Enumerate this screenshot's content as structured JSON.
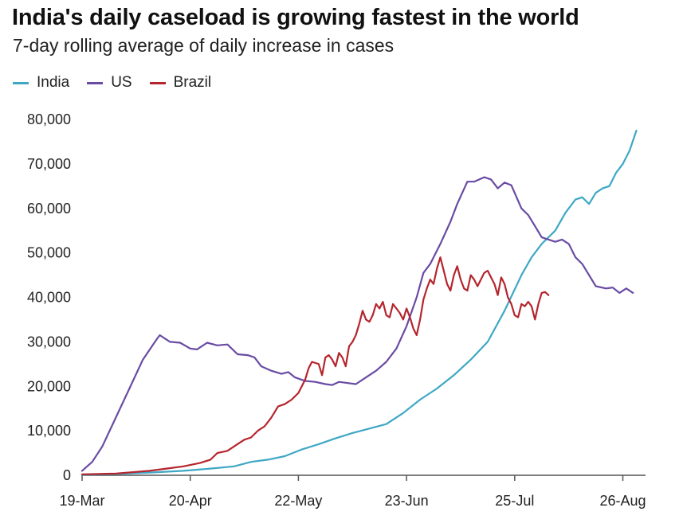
{
  "chart_data": {
    "type": "line",
    "title": "India's daily caseload is growing fastest in the world",
    "subtitle": "7-day rolling average of daily increase in cases",
    "xlabel": "",
    "ylabel": "",
    "x_day_range": [
      0,
      162
    ],
    "ylim": [
      0,
      80000
    ],
    "y_ticks": [
      0,
      10000,
      20000,
      30000,
      40000,
      50000,
      60000,
      70000,
      80000
    ],
    "y_tick_labels": [
      "0",
      "10,000",
      "20,000",
      "30,000",
      "40,000",
      "50,000",
      "60,000",
      "70,000",
      "80,000"
    ],
    "x_ticks": [
      {
        "day": 0,
        "label": "19-Mar"
      },
      {
        "day": 32,
        "label": "20-Apr"
      },
      {
        "day": 64,
        "label": "22-May"
      },
      {
        "day": 96,
        "label": "23-Jun"
      },
      {
        "day": 128,
        "label": "25-Jul"
      },
      {
        "day": 160,
        "label": "26-Aug"
      }
    ],
    "grid": false,
    "legend_position": "top-left",
    "series": [
      {
        "name": "India",
        "color": "#3fa7c4",
        "points": [
          [
            0,
            100
          ],
          [
            10,
            300
          ],
          [
            20,
            600
          ],
          [
            30,
            1000
          ],
          [
            38,
            1500
          ],
          [
            45,
            2000
          ],
          [
            50,
            3000
          ],
          [
            55,
            3500
          ],
          [
            60,
            4300
          ],
          [
            65,
            5800
          ],
          [
            70,
            7000
          ],
          [
            75,
            8300
          ],
          [
            80,
            9500
          ],
          [
            85,
            10500
          ],
          [
            90,
            11500
          ],
          [
            95,
            14000
          ],
          [
            100,
            17000
          ],
          [
            105,
            19500
          ],
          [
            110,
            22500
          ],
          [
            115,
            26000
          ],
          [
            120,
            30000
          ],
          [
            125,
            37000
          ],
          [
            130,
            45000
          ],
          [
            133,
            49000
          ],
          [
            136,
            52000
          ],
          [
            140,
            55000
          ],
          [
            143,
            59000
          ],
          [
            146,
            62000
          ],
          [
            148,
            62500
          ],
          [
            150,
            61000
          ],
          [
            152,
            63500
          ],
          [
            154,
            64500
          ],
          [
            156,
            65000
          ],
          [
            158,
            68000
          ],
          [
            160,
            70000
          ],
          [
            162,
            73000
          ],
          [
            164,
            77500
          ]
        ]
      },
      {
        "name": "US",
        "color": "#6a4ba3",
        "points": [
          [
            0,
            1000
          ],
          [
            3,
            3000
          ],
          [
            6,
            6500
          ],
          [
            10,
            13000
          ],
          [
            14,
            19500
          ],
          [
            18,
            26000
          ],
          [
            22,
            30500
          ],
          [
            23,
            31500
          ],
          [
            26,
            30000
          ],
          [
            29,
            29800
          ],
          [
            32,
            28500
          ],
          [
            34,
            28300
          ],
          [
            37,
            29800
          ],
          [
            40,
            29200
          ],
          [
            43,
            29400
          ],
          [
            46,
            27200
          ],
          [
            49,
            27000
          ],
          [
            51,
            26500
          ],
          [
            53,
            24500
          ],
          [
            56,
            23500
          ],
          [
            59,
            22800
          ],
          [
            61,
            23200
          ],
          [
            63,
            22000
          ],
          [
            66,
            21200
          ],
          [
            69,
            21000
          ],
          [
            72,
            20500
          ],
          [
            74,
            20300
          ],
          [
            76,
            21000
          ],
          [
            78,
            20800
          ],
          [
            81,
            20500
          ],
          [
            84,
            22000
          ],
          [
            87,
            23500
          ],
          [
            90,
            25500
          ],
          [
            93,
            28500
          ],
          [
            96,
            33500
          ],
          [
            99,
            40000
          ],
          [
            101,
            45500
          ],
          [
            103,
            47500
          ],
          [
            106,
            52000
          ],
          [
            109,
            57000
          ],
          [
            111,
            61000
          ],
          [
            114,
            66000
          ],
          [
            116,
            66000
          ],
          [
            119,
            67000
          ],
          [
            121,
            66500
          ],
          [
            123,
            64500
          ],
          [
            125,
            65800
          ],
          [
            127,
            65200
          ],
          [
            130,
            60000
          ],
          [
            132,
            58500
          ],
          [
            134,
            56000
          ],
          [
            136,
            53500
          ],
          [
            138,
            53000
          ],
          [
            140,
            52500
          ],
          [
            142,
            53000
          ],
          [
            144,
            52000
          ],
          [
            146,
            49000
          ],
          [
            148,
            47500
          ],
          [
            150,
            45000
          ],
          [
            152,
            42500
          ],
          [
            155,
            42000
          ],
          [
            157,
            42200
          ],
          [
            159,
            41000
          ],
          [
            161,
            42000
          ],
          [
            163,
            41000
          ]
        ]
      },
      {
        "name": "Brazil",
        "color": "#b5252d",
        "points": [
          [
            0,
            200
          ],
          [
            10,
            400
          ],
          [
            20,
            1000
          ],
          [
            25,
            1500
          ],
          [
            30,
            2000
          ],
          [
            35,
            2800
          ],
          [
            38,
            3500
          ],
          [
            40,
            5000
          ],
          [
            43,
            5500
          ],
          [
            45,
            6500
          ],
          [
            48,
            8000
          ],
          [
            50,
            8500
          ],
          [
            52,
            10000
          ],
          [
            54,
            11000
          ],
          [
            56,
            13000
          ],
          [
            58,
            15500
          ],
          [
            60,
            16000
          ],
          [
            62,
            17000
          ],
          [
            64,
            18500
          ],
          [
            66,
            21500
          ],
          [
            67,
            24000
          ],
          [
            68,
            25500
          ],
          [
            70,
            25000
          ],
          [
            71,
            22500
          ],
          [
            72,
            26500
          ],
          [
            73,
            27000
          ],
          [
            74,
            26000
          ],
          [
            75,
            24500
          ],
          [
            76,
            27500
          ],
          [
            77,
            26500
          ],
          [
            78,
            24500
          ],
          [
            79,
            29000
          ],
          [
            80,
            30000
          ],
          [
            81,
            31500
          ],
          [
            82,
            34000
          ],
          [
            83,
            37000
          ],
          [
            84,
            35000
          ],
          [
            85,
            34500
          ],
          [
            86,
            36000
          ],
          [
            87,
            38500
          ],
          [
            88,
            37500
          ],
          [
            89,
            39000
          ],
          [
            90,
            36000
          ],
          [
            91,
            35500
          ],
          [
            92,
            38500
          ],
          [
            93,
            37500
          ],
          [
            94,
            36500
          ],
          [
            95,
            35000
          ],
          [
            96,
            37500
          ],
          [
            97,
            35500
          ],
          [
            98,
            33000
          ],
          [
            99,
            31500
          ],
          [
            100,
            35000
          ],
          [
            101,
            39500
          ],
          [
            102,
            42000
          ],
          [
            103,
            44000
          ],
          [
            104,
            43000
          ],
          [
            105,
            46500
          ],
          [
            106,
            49000
          ],
          [
            107,
            46000
          ],
          [
            108,
            43000
          ],
          [
            109,
            41500
          ],
          [
            110,
            45000
          ],
          [
            111,
            47000
          ],
          [
            112,
            44000
          ],
          [
            113,
            42000
          ],
          [
            114,
            41500
          ],
          [
            115,
            45000
          ],
          [
            116,
            44000
          ],
          [
            117,
            42500
          ],
          [
            118,
            44000
          ],
          [
            119,
            45500
          ],
          [
            120,
            46000
          ],
          [
            121,
            44500
          ],
          [
            122,
            43000
          ],
          [
            123,
            40500
          ],
          [
            124,
            44500
          ],
          [
            125,
            43000
          ],
          [
            126,
            40000
          ],
          [
            127,
            38500
          ],
          [
            128,
            36000
          ],
          [
            129,
            35500
          ],
          [
            130,
            38500
          ],
          [
            131,
            38000
          ],
          [
            132,
            39000
          ],
          [
            133,
            38000
          ],
          [
            134,
            35000
          ],
          [
            135,
            38500
          ],
          [
            136,
            41000
          ],
          [
            137,
            41200
          ],
          [
            138,
            40500
          ]
        ]
      }
    ]
  },
  "legend": {
    "india": "India",
    "us": "US",
    "brazil": "Brazil"
  },
  "colors": {
    "india": "#3fa7c4",
    "us": "#6a4ba3",
    "brazil": "#b5252d"
  }
}
